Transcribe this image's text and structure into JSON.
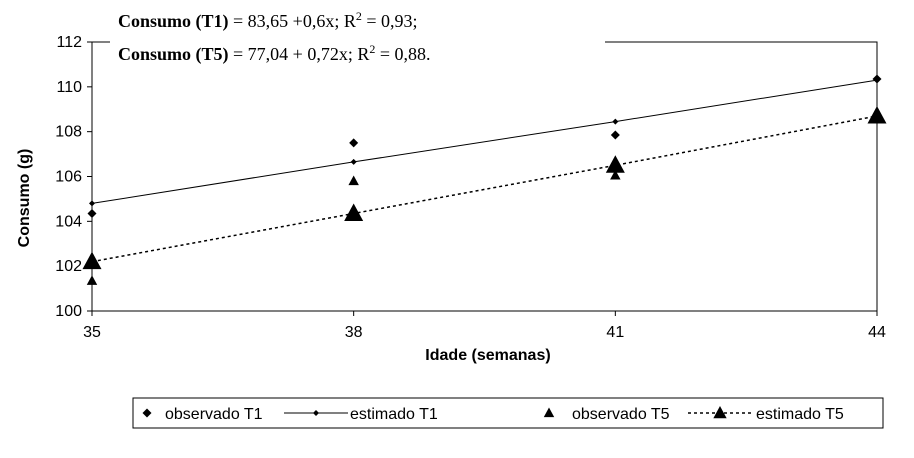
{
  "equations": {
    "t1": {
      "label": "Consumo (T1)",
      "text": " =  83,65 +0,6x; R",
      "sup": "2",
      "tail": " = 0,93;"
    },
    "t5": {
      "label": "Consumo (T5)",
      "text": " =  77,04 + 0,72x; R",
      "sup": "2",
      "tail": " = 0,88."
    }
  },
  "chart_data": {
    "type": "scatter",
    "xlabel": "Idade (semanas)",
    "ylabel": "Consumo (g)",
    "x_ticks": [
      "35",
      "38",
      "41",
      "44"
    ],
    "y_ticks": [
      "100",
      "102",
      "104",
      "106",
      "108",
      "110",
      "112"
    ],
    "xlim": [
      35,
      44
    ],
    "ylim": [
      100,
      112
    ],
    "grid": false,
    "legend_position": "bottom",
    "series": [
      {
        "name": "observado T1",
        "kind": "points",
        "marker": "diamond",
        "points": [
          [
            35,
            104.35
          ],
          [
            38,
            107.5
          ],
          [
            41,
            107.85
          ],
          [
            44,
            110.35
          ]
        ]
      },
      {
        "name": "estimado T1",
        "kind": "line",
        "line_style": "solid",
        "marker": "diamond-small",
        "points": [
          [
            35,
            104.8
          ],
          [
            38,
            106.65
          ],
          [
            41,
            108.45
          ],
          [
            44,
            110.3
          ]
        ]
      },
      {
        "name": "observado T5",
        "kind": "points",
        "marker": "triangle",
        "points": [
          [
            35,
            101.35
          ],
          [
            38,
            105.8
          ],
          [
            41,
            106.05
          ],
          [
            44,
            108.75
          ]
        ]
      },
      {
        "name": "estimado T5",
        "kind": "line",
        "line_style": "dotted",
        "marker": "triangle-large",
        "points": [
          [
            35,
            102.2
          ],
          [
            38,
            104.35
          ],
          [
            41,
            106.5
          ],
          [
            44,
            108.7
          ]
        ]
      }
    ]
  }
}
